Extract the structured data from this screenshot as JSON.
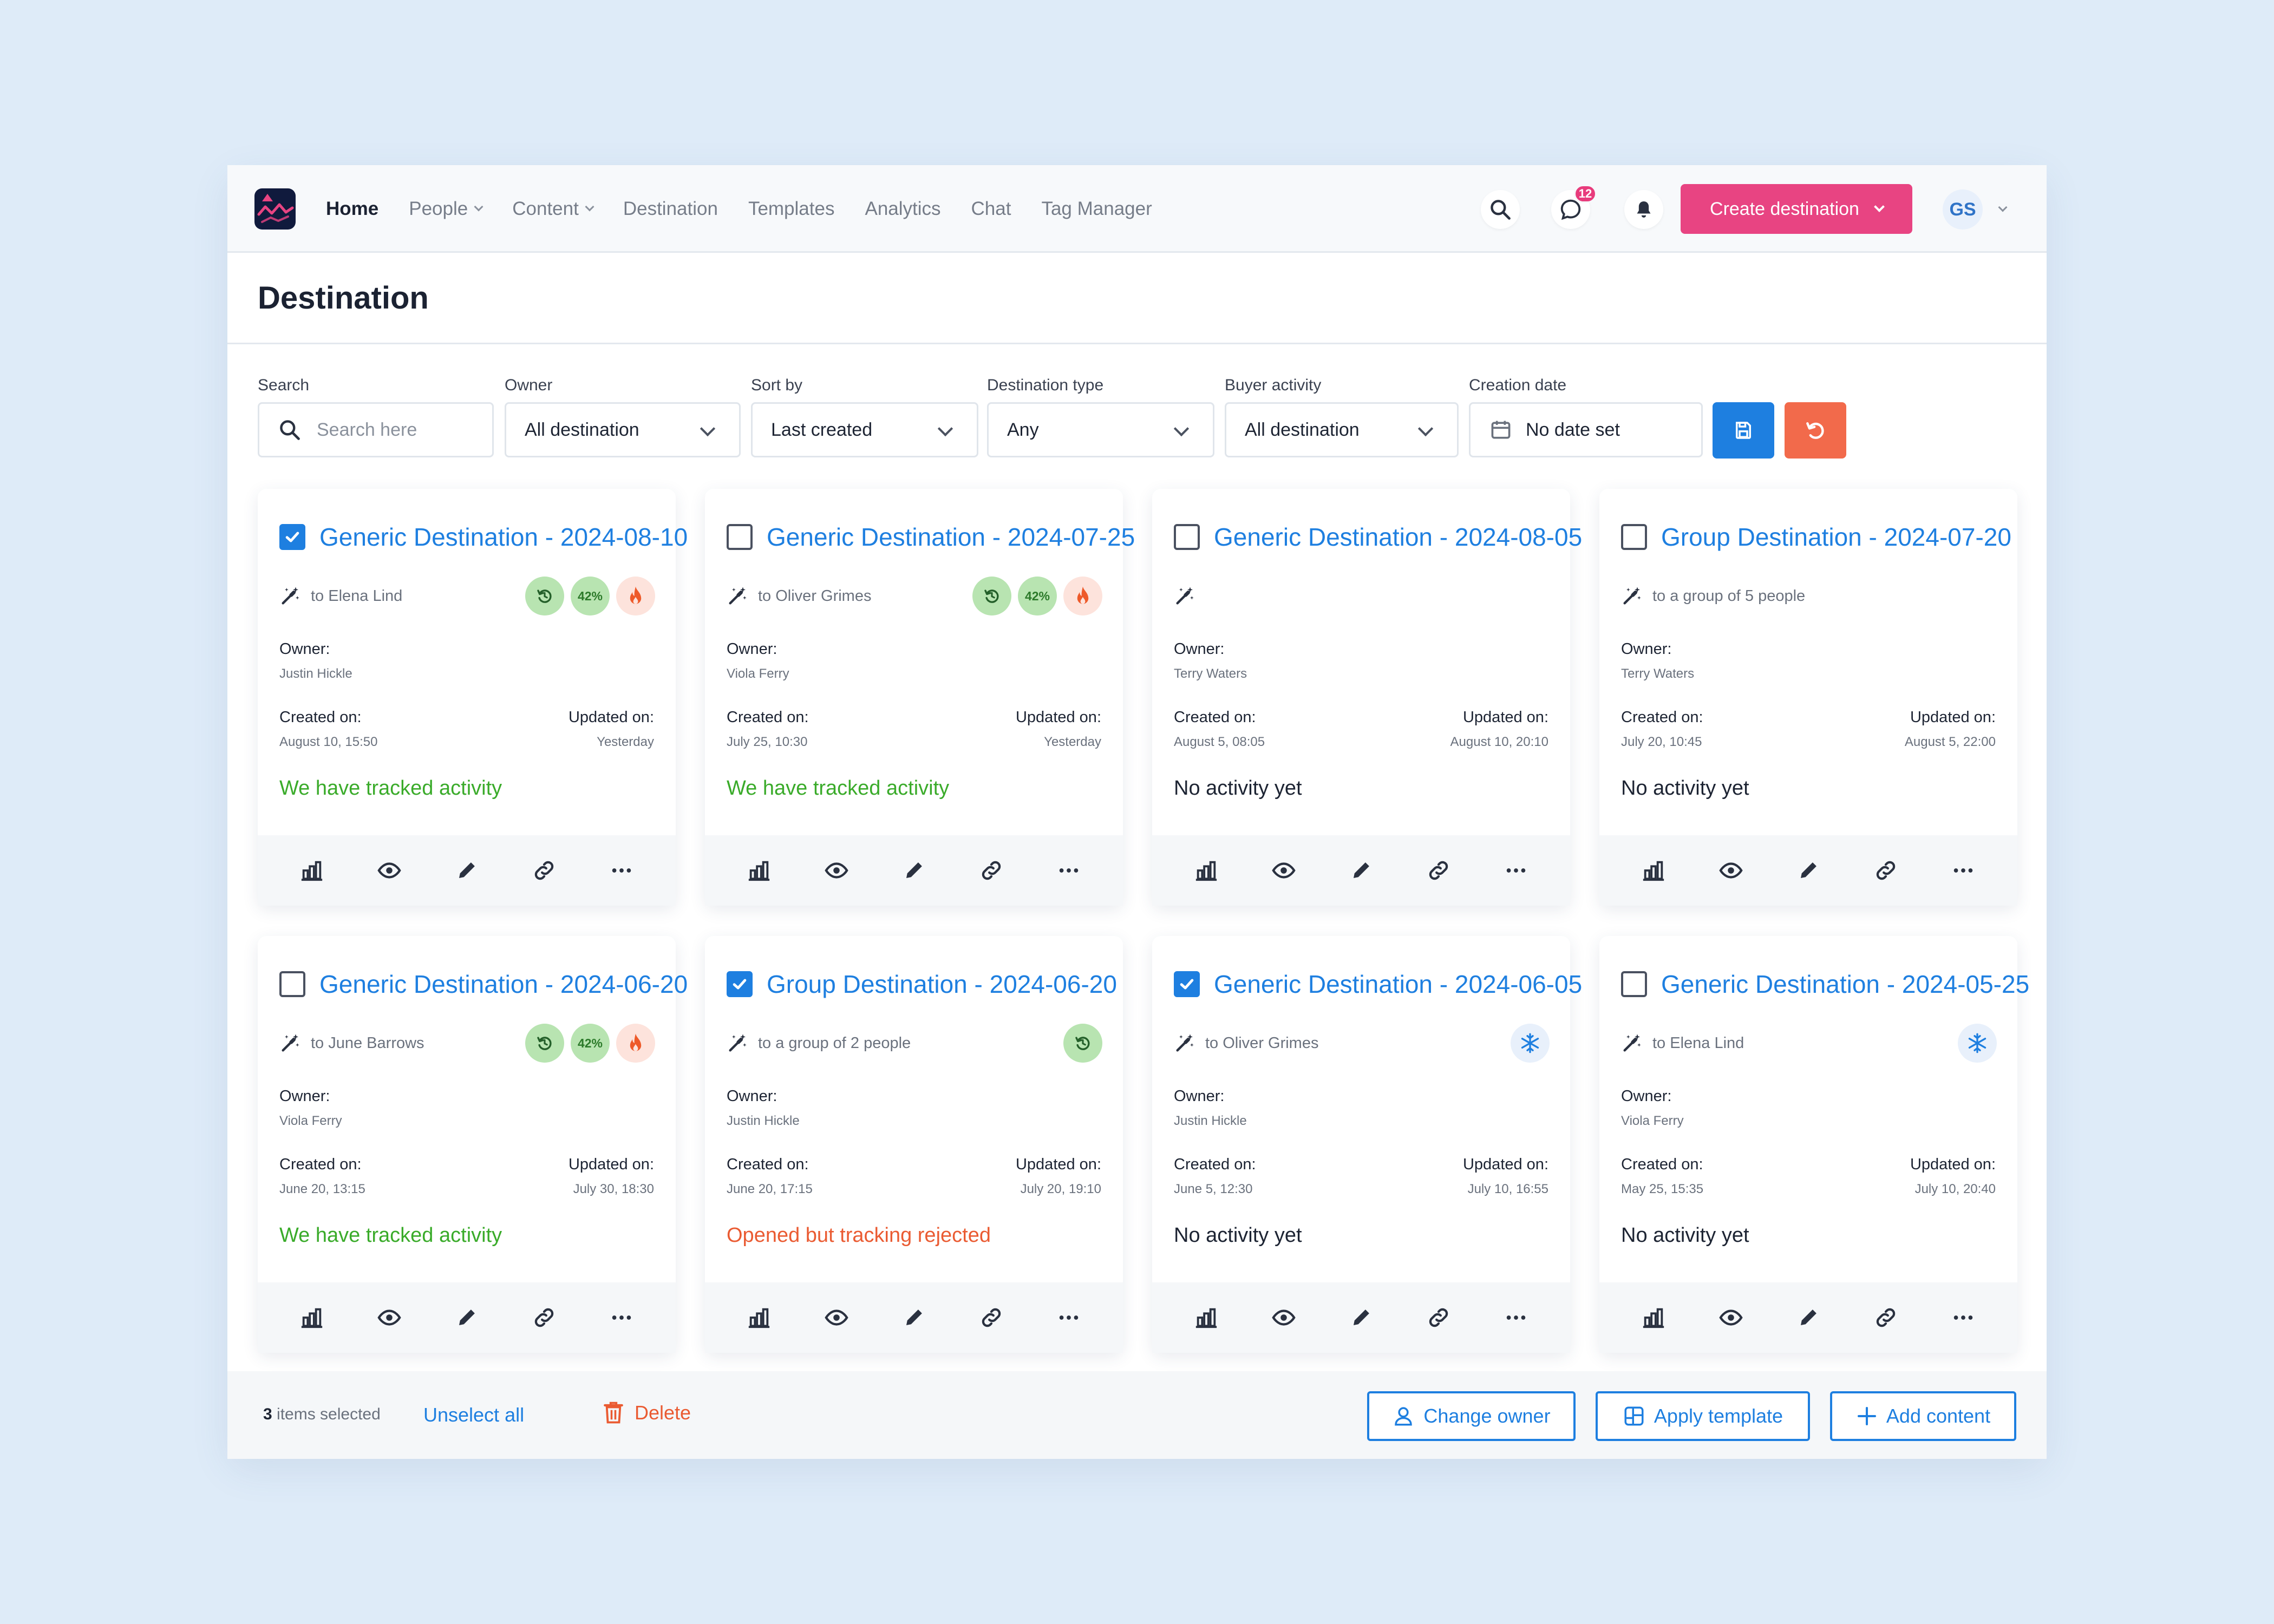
{
  "nav": {
    "home": "Home",
    "people": "People",
    "content": "Content",
    "destination": "Destination",
    "templates": "Templates",
    "analytics": "Analytics",
    "chat": "Chat",
    "tag_manager": "Tag Manager"
  },
  "header": {
    "chat_badge": "12",
    "create_label": "Create destination",
    "avatar_initials": "GS"
  },
  "page": {
    "title": "Destination"
  },
  "filters": {
    "search_label": "Search",
    "search_placeholder": "Search here",
    "owner_label": "Owner",
    "owner_value": "All destination",
    "sort_label": "Sort by",
    "sort_value": "Last created",
    "type_label": "Destination type",
    "type_value": "Any",
    "buyer_label": "Buyer activity",
    "buyer_value": "All destination",
    "date_label": "Creation date",
    "date_value": "No date set"
  },
  "labels": {
    "owner": "Owner:",
    "created": "Created on:",
    "updated": "Updated on:",
    "percent": "42%"
  },
  "cards": [
    {
      "title": "Generic Destination - 2024-08-10",
      "recipient": "to Elena Lind",
      "owner": "Justin Hickle",
      "created": "August 10, 15:50",
      "updated": "Yesterday",
      "status": "We have tracked activity",
      "checked": true
    },
    {
      "title": "Generic Destination - 2024-07-25",
      "recipient": "to Oliver Grimes",
      "owner": "Viola Ferry",
      "created": "July 25, 10:30",
      "updated": "Yesterday",
      "status": "We have tracked activity",
      "checked": false
    },
    {
      "title": "Generic Destination - 2024-08-05",
      "recipient": "",
      "owner": "Terry Waters",
      "created": "August 5, 08:05",
      "updated": "August 10, 20:10",
      "status": "No activity yet",
      "checked": false
    },
    {
      "title": "Group Destination - 2024-07-20",
      "recipient": "to a group of 5 people",
      "owner": "Terry Waters",
      "created": "July 20, 10:45",
      "updated": "August 5, 22:00",
      "status": "No activity yet",
      "checked": false
    },
    {
      "title": "Generic Destination - 2024-06-20",
      "recipient": "to June Barrows",
      "owner": "Viola Ferry",
      "created": "June 20, 13:15",
      "updated": "July 30, 18:30",
      "status": "We have tracked activity",
      "checked": false
    },
    {
      "title": "Group Destination - 2024-06-20",
      "recipient": "to a group of 2 people",
      "owner": "Justin Hickle",
      "created": "June 20, 17:15",
      "updated": "July 20, 19:10",
      "status": "Opened but tracking rejected",
      "checked": true
    },
    {
      "title": "Generic Destination - 2024-06-05",
      "recipient": "to Oliver Grimes",
      "owner": "Justin Hickle",
      "created": "June 5, 12:30",
      "updated": "July 10, 16:55",
      "status": "No activity yet",
      "checked": true
    },
    {
      "title": "Generic Destination - 2024-05-25",
      "recipient": "to Elena Lind",
      "owner": "Viola Ferry",
      "created": "May 25, 15:35",
      "updated": "July 10, 20:40",
      "status": "No activity yet",
      "checked": false
    }
  ],
  "bottom": {
    "selected_count": "3",
    "selected_text": "items selected",
    "unselect": "Unselect all",
    "delete": "Delete",
    "change_owner": "Change owner",
    "apply_template": "Apply template",
    "add_content": "Add content"
  },
  "colors": {
    "accent": "#1e7fe0",
    "brand_pink": "#e84482",
    "tracked": "#3aab2a",
    "rejected": "#ea5b32",
    "reset": "#f26a4b"
  }
}
